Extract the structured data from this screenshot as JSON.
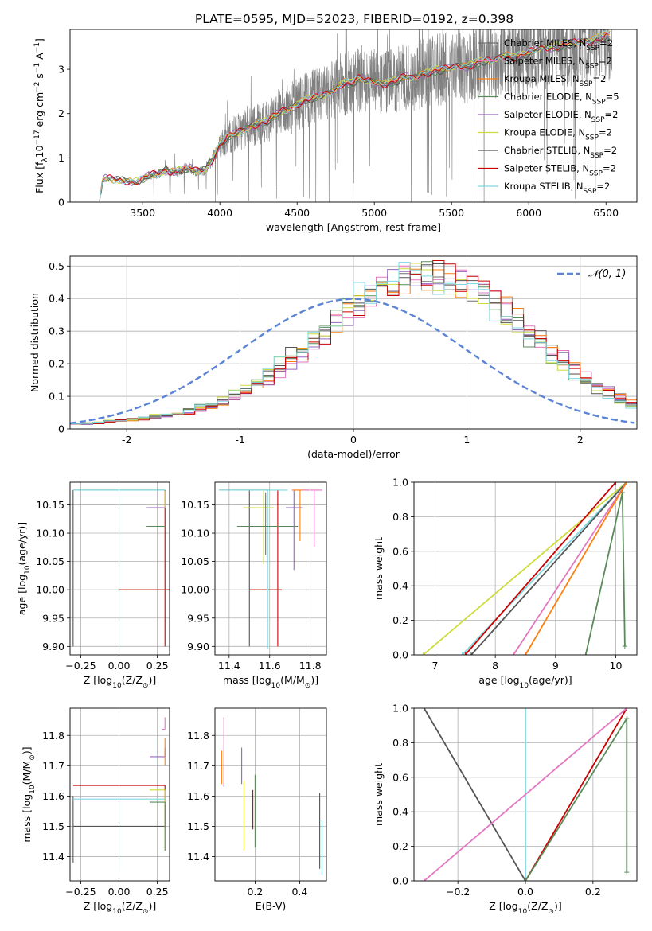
{
  "figure": {
    "title": "PLATE=0595, MJD=52023, FIBERID=0192, z=0.398"
  },
  "models": [
    {
      "name": "Chabrier MILES",
      "nssp": "2",
      "color": "#6e6e6e"
    },
    {
      "name": "Salpeter MILES",
      "nssp": "2",
      "color": "#e377c2"
    },
    {
      "name": "Kroupa MILES",
      "nssp": "2",
      "color": "#ff7f0e"
    },
    {
      "name": "Chabrier ELODIE",
      "nssp": "5",
      "color": "#5a8a5a"
    },
    {
      "name": "Salpeter ELODIE",
      "nssp": "2",
      "color": "#9467bd"
    },
    {
      "name": "Kroupa ELODIE",
      "nssp": "2",
      "color": "#cddc39"
    },
    {
      "name": "Chabrier STELIB",
      "nssp": "2",
      "color": "#555555"
    },
    {
      "name": "Salpeter STELIB",
      "nssp": "2",
      "color": "#cc0000"
    },
    {
      "name": "Kroupa STELIB",
      "nssp": "2",
      "color": "#7fd8e0"
    }
  ],
  "chart_data": [
    {
      "id": "spectrum",
      "type": "line",
      "xlabel": "wavelength [Angstrom, rest frame]",
      "ylabel_parts": [
        "Flux [",
        "f",
        "λ",
        "10",
        "−17",
        " erg cm",
        "−2",
        " s",
        "−1",
        " A",
        "−1",
        "]"
      ],
      "xlim": [
        3030,
        6700
      ],
      "ylim": [
        0,
        3.9
      ],
      "xticks": [
        3500,
        4000,
        4500,
        5000,
        5500,
        6000,
        6500
      ],
      "yticks": [
        0,
        1,
        2,
        3
      ],
      "legend_suffix": "N",
      "legend_sub": "SSP",
      "legend_position": "upper right",
      "data_color": "#808080",
      "model_curve": {
        "x": [
          3220,
          3240,
          3260,
          3300,
          3350,
          3400,
          3450,
          3500,
          3550,
          3600,
          3650,
          3700,
          3750,
          3800,
          3850,
          3900,
          3950,
          4000,
          4050,
          4100,
          4150,
          4200,
          4250,
          4300,
          4350,
          4400,
          4450,
          4500,
          4550,
          4600,
          4650,
          4700,
          4750,
          4800,
          4850,
          4900,
          4950,
          5000,
          5050,
          5100,
          5150,
          5200,
          5250,
          5300,
          5350,
          5400,
          5450,
          5500,
          5550,
          5600,
          5650,
          5700,
          5750,
          5800,
          5850,
          5900,
          5950,
          6000,
          6050,
          6100,
          6150,
          6200,
          6250,
          6300,
          6350,
          6400,
          6450,
          6500,
          6530
        ],
        "y": [
          0.0,
          0.48,
          0.55,
          0.52,
          0.5,
          0.47,
          0.45,
          0.52,
          0.62,
          0.63,
          0.72,
          0.68,
          0.72,
          0.78,
          0.7,
          0.72,
          0.95,
          1.3,
          1.48,
          1.55,
          1.62,
          1.7,
          1.78,
          1.82,
          1.95,
          2.05,
          2.1,
          2.2,
          2.3,
          2.35,
          2.4,
          2.45,
          2.55,
          2.7,
          2.68,
          2.8,
          2.75,
          2.72,
          2.65,
          2.7,
          2.75,
          2.85,
          2.8,
          2.88,
          2.92,
          2.98,
          3.0,
          3.05,
          3.08,
          3.05,
          3.12,
          3.2,
          3.18,
          3.25,
          3.32,
          3.25,
          3.3,
          3.38,
          3.45,
          3.5,
          3.48,
          3.52,
          3.58,
          3.6,
          3.65,
          3.62,
          3.7,
          3.75,
          3.8
        ]
      },
      "data_range": [
        3500,
        6540
      ]
    },
    {
      "id": "residuals",
      "type": "line",
      "xlabel": "(data-model)/error",
      "ylabel": "Normed distribution",
      "xlim": [
        -2.5,
        2.5
      ],
      "ylim": [
        0,
        0.53
      ],
      "xticks": [
        -2,
        -1,
        0,
        1,
        2
      ],
      "yticks": [
        0.0,
        0.1,
        0.2,
        0.3,
        0.4,
        0.5
      ],
      "normal_label": "𝒩(0, 1)",
      "normal_color": "#5b84d6",
      "legend_position": "upper right",
      "hist_bin_width": 0.1,
      "hist_x0": -2.5,
      "hist_base": [
        0.015,
        0.018,
        0.02,
        0.025,
        0.028,
        0.03,
        0.034,
        0.04,
        0.045,
        0.05,
        0.06,
        0.07,
        0.08,
        0.095,
        0.11,
        0.13,
        0.15,
        0.17,
        0.2,
        0.23,
        0.26,
        0.29,
        0.32,
        0.35,
        0.38,
        0.41,
        0.43,
        0.45,
        0.46,
        0.47,
        0.47,
        0.47,
        0.46,
        0.45,
        0.44,
        0.42,
        0.4,
        0.37,
        0.34,
        0.31,
        0.28,
        0.25,
        0.22,
        0.19,
        0.16,
        0.14,
        0.12,
        0.1,
        0.085,
        0.07
      ]
    },
    {
      "id": "age-vs-z",
      "type": "scatter",
      "xlabel_parts": [
        "Z [log",
        "10",
        "(Z/Z",
        "⊙",
        ")]"
      ],
      "ylabel_parts": [
        "age  [log",
        "10",
        "(age/yr)]"
      ],
      "xlim": [
        -0.32,
        0.33
      ],
      "ylim": [
        9.885,
        10.19
      ],
      "xticks": [
        -0.25,
        0.0,
        0.25
      ],
      "xticklabels": [
        "−0.25",
        "0.00",
        "0.25"
      ],
      "yticks": [
        9.9,
        9.95,
        10.0,
        10.05,
        10.1,
        10.15
      ],
      "yticklabels": [
        "9.90",
        "9.95",
        "10.00",
        "10.05",
        "10.10",
        "10.15"
      ],
      "points": [
        {
          "x": 0.3,
          "y": 10.0,
          "xerr": [
            0.3,
            0.3
          ],
          "yerr": [
            0.1,
            0.176
          ],
          "model": 7
        },
        {
          "x": -0.3,
          "y": 10.176,
          "xerr": [
            0.0,
            0.6
          ],
          "yerr": [
            0.276,
            0.0
          ],
          "model": 6
        },
        {
          "x": 0.0,
          "y": 10.176,
          "xerr": [
            0.3,
            0.3
          ],
          "yerr": [
            0.29,
            0.0
          ],
          "model": 8
        },
        {
          "x": 0.3,
          "y": 10.145,
          "xerr": [
            0.1,
            0.0
          ],
          "yerr": [
            0.0,
            0.03
          ],
          "model": 5
        },
        {
          "x": 0.3,
          "y": 10.112,
          "xerr": [
            0.12,
            0.0
          ],
          "yerr": [
            0.0,
            0.0
          ],
          "model": 3
        },
        {
          "x": 0.3,
          "y": 10.145,
          "xerr": [
            0.12,
            0.0
          ],
          "yerr": [
            0.0,
            0.0
          ],
          "model": 4
        }
      ]
    },
    {
      "id": "age-vs-mass",
      "type": "scatter",
      "xlabel_parts": [
        "mass [log",
        "10",
        "(M/M",
        "⊙",
        ")]"
      ],
      "xlim": [
        11.33,
        11.88
      ],
      "ylim": [
        9.885,
        10.19
      ],
      "xticks": [
        11.4,
        11.6,
        11.8
      ],
      "xticklabels": [
        "11.4",
        "11.6",
        "11.8"
      ],
      "yticks": [
        9.9,
        9.95,
        10.0,
        10.05,
        10.1,
        10.15
      ],
      "yticklabels": [
        "9.90",
        "9.95",
        "10.00",
        "10.05",
        "10.10",
        "10.15"
      ],
      "points": [
        {
          "x": 11.5,
          "y": 10.176,
          "xerr": [
            0.15,
            0.1
          ],
          "yerr": [
            0.276,
            0.0
          ],
          "model": 6
        },
        {
          "x": 11.64,
          "y": 10.0,
          "xerr": [
            0.14,
            0.02
          ],
          "yerr": [
            0.1,
            0.176
          ],
          "model": 7
        },
        {
          "x": 11.59,
          "y": 10.176,
          "xerr": [
            0.24,
            0.1
          ],
          "yerr": [
            0.28,
            0.0
          ],
          "model": 8
        },
        {
          "x": 11.57,
          "y": 10.145,
          "xerr": [
            0.1,
            0.05
          ],
          "yerr": [
            0.1,
            0.03
          ],
          "model": 5
        },
        {
          "x": 11.58,
          "y": 10.112,
          "xerr": [
            0.14,
            0.16
          ],
          "yerr": [
            0.05,
            0.06
          ],
          "model": 3
        },
        {
          "x": 11.72,
          "y": 10.145,
          "xerr": [
            0.04,
            0.04
          ],
          "yerr": [
            0.11,
            0.03
          ],
          "model": 4
        },
        {
          "x": 11.75,
          "y": 10.176,
          "xerr": [
            0.04,
            0.04
          ],
          "yerr": [
            0.09,
            0.0
          ],
          "model": 2
        },
        {
          "x": 11.82,
          "y": 10.176,
          "xerr": [
            0.06,
            0.04
          ],
          "yerr": [
            0.1,
            0.0
          ],
          "model": 1
        }
      ]
    },
    {
      "id": "mass-weight-vs-age",
      "type": "line",
      "xlabel_parts": [
        "age  [log",
        "10",
        "(age/yr)]"
      ],
      "ylabel": "mass weight",
      "xlim": [
        6.65,
        10.35
      ],
      "ylim": [
        0,
        1
      ],
      "xticks": [
        7,
        8,
        9,
        10
      ],
      "yticks": [
        0.0,
        0.2,
        0.4,
        0.6,
        0.8,
        1.0
      ],
      "yticklabels": [
        "0.0",
        "0.2",
        "0.4",
        "0.6",
        "0.8",
        "1.0"
      ],
      "series": [
        {
          "model": 5,
          "x": [
            6.8,
            10.18
          ],
          "y": [
            0.0,
            1.0
          ]
        },
        {
          "model": 8,
          "x": [
            7.45,
            10.18
          ],
          "y": [
            0.0,
            1.0
          ]
        },
        {
          "model": 6,
          "x": [
            7.6,
            10.18
          ],
          "y": [
            0.0,
            1.0
          ]
        },
        {
          "model": 7,
          "x": [
            7.5,
            10.0
          ],
          "y": [
            0.0,
            1.0
          ]
        },
        {
          "model": 1,
          "x": [
            8.3,
            10.18
          ],
          "y": [
            0.0,
            1.0
          ]
        },
        {
          "model": 2,
          "x": [
            8.5,
            10.18
          ],
          "y": [
            0.0,
            1.0
          ]
        },
        {
          "model": 3,
          "x": [
            9.5,
            10.11,
            10.15
          ],
          "y": [
            0.0,
            0.94,
            0.05
          ]
        }
      ]
    },
    {
      "id": "mass-vs-z",
      "type": "scatter",
      "xlabel_parts": [
        "Z [log",
        "10",
        "(Z/Z",
        "⊙",
        ")]"
      ],
      "ylabel_parts": [
        "mass [log",
        "10",
        "(M/M",
        "⊙",
        ")]"
      ],
      "xlim": [
        -0.32,
        0.33
      ],
      "ylim": [
        11.32,
        11.89
      ],
      "xticks": [
        -0.25,
        0.0,
        0.25
      ],
      "xticklabels": [
        "−0.25",
        "0.00",
        "0.25"
      ],
      "yticks": [
        11.4,
        11.5,
        11.6,
        11.7,
        11.8
      ],
      "yticklabels": [
        "11.4",
        "11.5",
        "11.6",
        "11.7",
        "11.8"
      ],
      "points": [
        {
          "x": 0.3,
          "y": 11.635,
          "xerr": [
            0.6,
            0.0
          ],
          "yerr": [
            0.14,
            0.0
          ],
          "model": 7
        },
        {
          "x": -0.3,
          "y": 11.5,
          "xerr": [
            0.0,
            0.6
          ],
          "yerr": [
            0.12,
            0.1
          ],
          "model": 6
        },
        {
          "x": 0.0,
          "y": 11.59,
          "xerr": [
            0.3,
            0.3
          ],
          "yerr": [
            0.24,
            0.0
          ],
          "model": 8
        },
        {
          "x": 0.3,
          "y": 11.62,
          "xerr": [
            0.1,
            0.0
          ],
          "yerr": [
            0.2,
            0.0
          ],
          "model": 5
        },
        {
          "x": 0.3,
          "y": 11.58,
          "xerr": [
            0.1,
            0.0
          ],
          "yerr": [
            0.16,
            0.0
          ],
          "model": 3
        },
        {
          "x": 0.3,
          "y": 11.73,
          "xerr": [
            0.1,
            0.0
          ],
          "yerr": [
            0.0,
            0.03
          ],
          "model": 4
        },
        {
          "x": 0.3,
          "y": 11.75,
          "xerr": [
            0.0,
            0.0
          ],
          "yerr": [
            0.05,
            0.04
          ],
          "model": 2
        },
        {
          "x": 0.3,
          "y": 11.82,
          "xerr": [
            0.02,
            0.0
          ],
          "yerr": [
            0.0,
            0.04
          ],
          "model": 1
        }
      ]
    },
    {
      "id": "mass-vs-ebv",
      "type": "scatter",
      "xlabel": "E(B-V)",
      "xlim": [
        0.02,
        0.52
      ],
      "ylim": [
        11.32,
        11.89
      ],
      "xticks": [
        0.2,
        0.4
      ],
      "xticklabels": [
        "0.2",
        "0.4"
      ],
      "yticks": [
        11.4,
        11.5,
        11.6,
        11.7,
        11.8
      ],
      "yticklabels": [
        "11.4",
        "11.5",
        "11.6",
        "11.7",
        "11.8"
      ],
      "points": [
        {
          "x": 0.05,
          "y": 11.7,
          "xerr": [
            0,
            0
          ],
          "yerr": [
            0.06,
            0.05
          ],
          "model": 2
        },
        {
          "x": 0.06,
          "y": 11.75,
          "xerr": [
            0,
            0
          ],
          "yerr": [
            0.12,
            0.11
          ],
          "model": 1
        },
        {
          "x": 0.14,
          "y": 11.7,
          "xerr": [
            0,
            0
          ],
          "yerr": [
            0.06,
            0.06
          ],
          "model": 4
        },
        {
          "x": 0.15,
          "y": 11.55,
          "xerr": [
            0,
            0
          ],
          "yerr": [
            0.13,
            0.1
          ],
          "model": 5
        },
        {
          "x": 0.19,
          "y": 11.56,
          "xerr": [
            0,
            0
          ],
          "yerr": [
            0.07,
            0.06
          ],
          "model": 7
        },
        {
          "x": 0.2,
          "y": 11.5,
          "xerr": [
            0,
            0
          ],
          "yerr": [
            0.07,
            0.17
          ],
          "model": 3
        },
        {
          "x": 0.49,
          "y": 11.5,
          "xerr": [
            0,
            0
          ],
          "yerr": [
            0.14,
            0.11
          ],
          "model": 6
        },
        {
          "x": 0.5,
          "y": 11.42,
          "xerr": [
            0,
            0
          ],
          "yerr": [
            0.08,
            0.1
          ],
          "model": 8
        }
      ]
    },
    {
      "id": "mass-weight-vs-z",
      "type": "line",
      "xlabel_parts": [
        "Z [log",
        "10",
        "(Z/Z",
        "⊙",
        ")]"
      ],
      "ylabel": "mass weight",
      "xlim": [
        -0.33,
        0.33
      ],
      "ylim": [
        0,
        1
      ],
      "xticks": [
        -0.2,
        0.0,
        0.2
      ],
      "xticklabels": [
        "−0.2",
        "0.0",
        "0.2"
      ],
      "yticks": [
        0.0,
        0.2,
        0.4,
        0.6,
        0.8,
        1.0
      ],
      "yticklabels": [
        "0.0",
        "0.2",
        "0.4",
        "0.6",
        "0.8",
        "1.0"
      ],
      "series": [
        {
          "model": 6,
          "x": [
            -0.3,
            0.0
          ],
          "y": [
            1.0,
            0.0
          ]
        },
        {
          "model": 8,
          "x": [
            0.0,
            0.0
          ],
          "y": [
            0.0,
            1.0
          ]
        },
        {
          "model": 7,
          "x": [
            0.0,
            0.3
          ],
          "y": [
            0.0,
            1.0
          ]
        },
        {
          "model": 1,
          "x": [
            -0.3,
            0.3
          ],
          "y": [
            0.0,
            1.0
          ]
        },
        {
          "model": 3,
          "x": [
            0.0,
            0.3,
            0.3
          ],
          "y": [
            0.0,
            0.94,
            0.05
          ]
        }
      ]
    }
  ]
}
